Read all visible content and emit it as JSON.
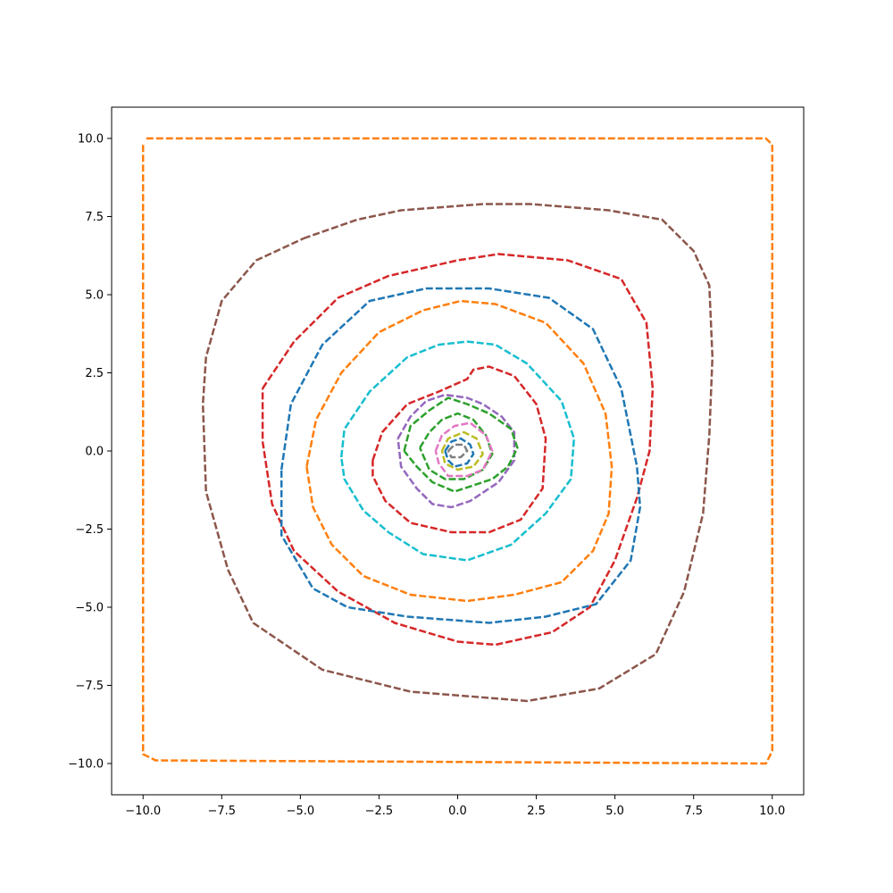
{
  "chart_data": {
    "type": "line",
    "title": "",
    "xlabel": "",
    "ylabel": "",
    "xlim": [
      -11,
      11
    ],
    "ylim": [
      -11,
      11
    ],
    "grid": false,
    "line_style": "dashed",
    "x_ticks": [
      -10.0,
      -7.5,
      -5.0,
      -2.5,
      0.0,
      2.5,
      5.0,
      7.5,
      10.0
    ],
    "x_tick_labels": [
      "−10.0",
      "−7.5",
      "−5.0",
      "−2.5",
      "0.0",
      "2.5",
      "5.0",
      "7.5",
      "10.0"
    ],
    "y_ticks": [
      -10.0,
      -7.5,
      -5.0,
      -2.5,
      0.0,
      2.5,
      5.0,
      7.5,
      10.0
    ],
    "y_tick_labels": [
      "−10.0",
      "−7.5",
      "−5.0",
      "−2.5",
      "0.0",
      "2.5",
      "5.0",
      "7.5",
      "10.0"
    ],
    "series": [
      {
        "color": "#ff7f0e",
        "points": [
          [
            -9.9,
            10
          ],
          [
            9.8,
            10
          ],
          [
            10,
            9.8
          ],
          [
            10,
            -9.6
          ],
          [
            9.8,
            -10
          ],
          [
            -9.6,
            -9.9
          ],
          [
            -10,
            -9.7
          ],
          [
            -10,
            9.8
          ]
        ]
      },
      {
        "color": "#8c564b",
        "points": [
          [
            -4.9,
            6.8
          ],
          [
            -3.2,
            7.4
          ],
          [
            -1.8,
            7.7
          ],
          [
            0.8,
            7.9
          ],
          [
            2.3,
            7.9
          ],
          [
            4.8,
            7.7
          ],
          [
            6.5,
            7.4
          ],
          [
            7.5,
            6.4
          ],
          [
            8,
            5.3
          ],
          [
            8.1,
            3
          ],
          [
            8,
            0.5
          ],
          [
            7.8,
            -2
          ],
          [
            7.2,
            -4.5
          ],
          [
            6.3,
            -6.5
          ],
          [
            4.5,
            -7.6
          ],
          [
            2.2,
            -8
          ],
          [
            1,
            -7.9
          ],
          [
            -1.5,
            -7.7
          ],
          [
            -4.3,
            -7.0
          ],
          [
            -6.5,
            -5.5
          ],
          [
            -7.3,
            -3.8
          ],
          [
            -8,
            -1.3
          ],
          [
            -8.1,
            1.5
          ],
          [
            -8,
            3
          ],
          [
            -7.5,
            4.8
          ],
          [
            -6.4,
            6.1
          ],
          [
            -4.9,
            6.8
          ]
        ]
      },
      {
        "color": "#d62728",
        "points": [
          [
            -6.2,
            2
          ],
          [
            -5.2,
            3.5
          ],
          [
            -3.8,
            4.9
          ],
          [
            -2.2,
            5.6
          ],
          [
            0,
            6.1
          ],
          [
            1.3,
            6.3
          ],
          [
            3.5,
            6.1
          ],
          [
            5.2,
            5.5
          ],
          [
            6,
            4.1
          ],
          [
            6.2,
            2
          ],
          [
            6.1,
            0
          ],
          [
            5.7,
            -1.5
          ],
          [
            5,
            -3.5
          ],
          [
            4.2,
            -5
          ],
          [
            3,
            -5.8
          ],
          [
            1.2,
            -6.2
          ],
          [
            0,
            -6.1
          ],
          [
            -2,
            -5.5
          ],
          [
            -3.8,
            -4.5
          ],
          [
            -5.2,
            -3.2
          ],
          [
            -5.9,
            -1.7
          ],
          [
            -6.2,
            0.3
          ],
          [
            -6.2,
            2
          ]
        ]
      },
      {
        "color": "#1f77b4",
        "points": [
          [
            -5.6,
            -0.6
          ],
          [
            -5.3,
            1.5
          ],
          [
            -4.3,
            3.4
          ],
          [
            -2.8,
            4.8
          ],
          [
            -1,
            5.2
          ],
          [
            1,
            5.2
          ],
          [
            2.9,
            4.9
          ],
          [
            4.3,
            3.9
          ],
          [
            5.2,
            2
          ],
          [
            5.7,
            -0.5
          ],
          [
            5.8,
            -1.8
          ],
          [
            5.5,
            -3.5
          ],
          [
            4.4,
            -4.9
          ],
          [
            2.8,
            -5.3
          ],
          [
            1,
            -5.5
          ],
          [
            -1.6,
            -5.3
          ],
          [
            -3.5,
            -5
          ],
          [
            -4.6,
            -4.4
          ],
          [
            -5.6,
            -2.7
          ],
          [
            -5.6,
            -0.6
          ]
        ]
      },
      {
        "color": "#ff7f0e",
        "points": [
          [
            -4.8,
            -0.5
          ],
          [
            -4.5,
            1
          ],
          [
            -3.7,
            2.5
          ],
          [
            -2.5,
            3.8
          ],
          [
            -1.1,
            4.5
          ],
          [
            0.1,
            4.8
          ],
          [
            1.2,
            4.7
          ],
          [
            2.8,
            4.1
          ],
          [
            4,
            2.8
          ],
          [
            4.7,
            1.2
          ],
          [
            4.9,
            -0.5
          ],
          [
            4.8,
            -2
          ],
          [
            4.3,
            -3.2
          ],
          [
            3.3,
            -4.2
          ],
          [
            1.8,
            -4.6
          ],
          [
            0.3,
            -4.8
          ],
          [
            -1.5,
            -4.6
          ],
          [
            -3,
            -4
          ],
          [
            -4,
            -3
          ],
          [
            -4.6,
            -1.8
          ],
          [
            -4.8,
            -0.5
          ]
        ]
      },
      {
        "color": "#17becf",
        "points": [
          [
            -3.7,
            -0.2
          ],
          [
            -3.6,
            0.7
          ],
          [
            -2.8,
            1.9
          ],
          [
            -1.6,
            3
          ],
          [
            -0.6,
            3.4
          ],
          [
            0.3,
            3.5
          ],
          [
            1.2,
            3.4
          ],
          [
            2.2,
            2.8
          ],
          [
            3.3,
            1.6
          ],
          [
            3.7,
            0.4
          ],
          [
            3.6,
            -0.9
          ],
          [
            2.8,
            -2
          ],
          [
            1.7,
            -3
          ],
          [
            0.3,
            -3.5
          ],
          [
            -1.1,
            -3.3
          ],
          [
            -2.2,
            -2.6
          ],
          [
            -3,
            -1.9
          ],
          [
            -3.6,
            -0.9
          ],
          [
            -3.7,
            -0.2
          ]
        ]
      },
      {
        "color": "#d62728",
        "points": [
          [
            -2.7,
            -0.3
          ],
          [
            -2.4,
            0.6
          ],
          [
            -1.6,
            1.5
          ],
          [
            -0.6,
            1.9
          ],
          [
            0.3,
            2.3
          ],
          [
            0.5,
            2.6
          ],
          [
            1,
            2.7
          ],
          [
            1.8,
            2.4
          ],
          [
            2.5,
            1.5
          ],
          [
            2.8,
            0.4
          ],
          [
            2.7,
            -1.2
          ],
          [
            2,
            -2.2
          ],
          [
            1,
            -2.6
          ],
          [
            -0.2,
            -2.6
          ],
          [
            -1.5,
            -2.3
          ],
          [
            -2.3,
            -1.6
          ],
          [
            -2.7,
            -0.8
          ],
          [
            -2.7,
            -0.3
          ]
        ]
      },
      {
        "color": "#9467bd",
        "points": [
          [
            -1.9,
            0.4
          ],
          [
            -1.5,
            1.1
          ],
          [
            -1,
            1.6
          ],
          [
            -0.4,
            1.8
          ],
          [
            0.3,
            1.7
          ],
          [
            0.8,
            1.5
          ],
          [
            1.4,
            1.1
          ],
          [
            1.8,
            0.6
          ],
          [
            1.8,
            -0.3
          ],
          [
            1.3,
            -1
          ],
          [
            0.4,
            -1.6
          ],
          [
            -0.2,
            -1.8
          ],
          [
            -0.8,
            -1.7
          ],
          [
            -1.3,
            -1.2
          ],
          [
            -1.8,
            -0.5
          ],
          [
            -1.9,
            0.4
          ]
        ]
      },
      {
        "color": "#2ca02c",
        "points": [
          [
            -1.7,
            0
          ],
          [
            -1.5,
            0.8
          ],
          [
            -0.9,
            1.3
          ],
          [
            -0.3,
            1.7
          ],
          [
            0.3,
            1.5
          ],
          [
            1,
            1.2
          ],
          [
            1.7,
            0.7
          ],
          [
            1.9,
            0.1
          ],
          [
            1.6,
            -0.5
          ],
          [
            1.1,
            -0.9
          ],
          [
            0.5,
            -1.1
          ],
          [
            -0.1,
            -1.3
          ],
          [
            -0.8,
            -1
          ],
          [
            -1.3,
            -0.5
          ],
          [
            -1.7,
            0
          ]
        ]
      },
      {
        "color": "#2ca02c",
        "points": [
          [
            -1.2,
            0.1
          ],
          [
            -0.9,
            0.6
          ],
          [
            -0.5,
            1
          ],
          [
            0,
            1.2
          ],
          [
            0.5,
            1
          ],
          [
            0.9,
            0.5
          ],
          [
            1.1,
            -0.1
          ],
          [
            0.8,
            -0.6
          ],
          [
            0.2,
            -0.9
          ],
          [
            -0.4,
            -0.9
          ],
          [
            -0.9,
            -0.6
          ],
          [
            -1.2,
            0.1
          ]
        ]
      },
      {
        "color": "#e377c2",
        "points": [
          [
            -0.7,
            0
          ],
          [
            -0.5,
            0.5
          ],
          [
            -0.1,
            0.8
          ],
          [
            0.4,
            0.9
          ],
          [
            0.9,
            0.5
          ],
          [
            1.1,
            0
          ],
          [
            0.8,
            -0.6
          ],
          [
            0.3,
            -0.8
          ],
          [
            -0.3,
            -0.8
          ],
          [
            -0.6,
            -0.4
          ],
          [
            -0.7,
            0
          ]
        ]
      },
      {
        "color": "#bcbd22",
        "points": [
          [
            -0.5,
            0
          ],
          [
            -0.3,
            0.4
          ],
          [
            0.2,
            0.6
          ],
          [
            0.6,
            0.4
          ],
          [
            0.8,
            -0.1
          ],
          [
            0.5,
            -0.5
          ],
          [
            0,
            -0.6
          ],
          [
            -0.4,
            -0.4
          ],
          [
            -0.5,
            0
          ]
        ]
      },
      {
        "color": "#1f77b4",
        "points": [
          [
            -0.4,
            0
          ],
          [
            -0.2,
            0.3
          ],
          [
            0.1,
            0.4
          ],
          [
            0.4,
            0.2
          ],
          [
            0.5,
            -0.1
          ],
          [
            0.3,
            -0.4
          ],
          [
            -0.1,
            -0.5
          ],
          [
            -0.3,
            -0.3
          ],
          [
            -0.4,
            0
          ]
        ]
      },
      {
        "color": "#7f7f7f",
        "points": [
          [
            -0.3,
            0
          ],
          [
            -0.1,
            0.2
          ],
          [
            0.2,
            0.2
          ],
          [
            0.3,
            0
          ],
          [
            0.1,
            -0.2
          ],
          [
            -0.2,
            -0.2
          ],
          [
            -0.3,
            0
          ]
        ]
      }
    ]
  }
}
